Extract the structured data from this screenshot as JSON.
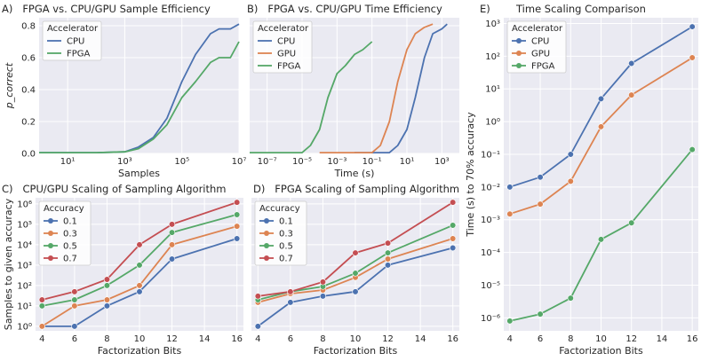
{
  "colors": {
    "blue": "#4c72b0",
    "orange": "#dd8452",
    "green": "#55a868",
    "red": "#c44e52"
  },
  "chart_data": [
    {
      "id": "A",
      "type": "line",
      "title": "A)   FPGA vs. CPU/GPU Sample Efficiency",
      "xlabel": "Samples",
      "ylabel": "p_correct",
      "xscale": "log",
      "xlim": [
        1,
        10000000
      ],
      "ylim": [
        0,
        0.85
      ],
      "xticks": [
        {
          "v": 10,
          "label": "10¹"
        },
        {
          "v": 1000,
          "label": "10³"
        },
        {
          "v": 100000,
          "label": "10⁵"
        },
        {
          "v": 10000000,
          "label": "10⁷"
        }
      ],
      "yticks": [
        {
          "v": 0,
          "label": "0.0"
        },
        {
          "v": 0.2,
          "label": "0.2"
        },
        {
          "v": 0.4,
          "label": "0.4"
        },
        {
          "v": 0.6,
          "label": "0.6"
        },
        {
          "v": 0.8,
          "label": "0.8"
        }
      ],
      "legend": {
        "title": "Accelerator",
        "position": "top-left",
        "entries": [
          {
            "name": "CPU",
            "color": "#4c72b0"
          },
          {
            "name": "FPGA",
            "color": "#55a868"
          }
        ]
      },
      "series": [
        {
          "name": "CPU",
          "color": "#4c72b0",
          "markers": false,
          "x": [
            1,
            100,
            1000,
            3000,
            10000,
            30000,
            100000,
            300000,
            1000000,
            2000000,
            5000000,
            10000000
          ],
          "y": [
            0.005,
            0.005,
            0.01,
            0.04,
            0.1,
            0.22,
            0.45,
            0.62,
            0.75,
            0.78,
            0.78,
            0.81
          ]
        },
        {
          "name": "FPGA",
          "color": "#55a868",
          "markers": false,
          "x": [
            1,
            100,
            1000,
            3000,
            10000,
            30000,
            100000,
            300000,
            1000000,
            2000000,
            5000000,
            10000000
          ],
          "y": [
            0.005,
            0.005,
            0.01,
            0.03,
            0.09,
            0.18,
            0.35,
            0.45,
            0.57,
            0.6,
            0.6,
            0.7
          ]
        }
      ]
    },
    {
      "id": "B",
      "type": "line",
      "title": "B)   FPGA vs. CPU/GPU Time Efficiency",
      "xlabel": "Time (s)",
      "ylabel": "",
      "xscale": "log",
      "xlim": [
        1e-08,
        10000
      ],
      "ylim": [
        0,
        0.85
      ],
      "xticks": [
        {
          "v": 1e-07,
          "label": "10⁻⁷"
        },
        {
          "v": 1e-05,
          "label": "10⁻⁵"
        },
        {
          "v": 0.001,
          "label": "10⁻³"
        },
        {
          "v": 0.1,
          "label": "10⁻¹"
        },
        {
          "v": 10,
          "label": "10¹"
        },
        {
          "v": 1000,
          "label": "10³"
        }
      ],
      "yticks": [],
      "legend": {
        "title": "Accelerator",
        "position": "top-left",
        "entries": [
          {
            "name": "CPU",
            "color": "#4c72b0"
          },
          {
            "name": "GPU",
            "color": "#dd8452"
          },
          {
            "name": "FPGA",
            "color": "#55a868"
          }
        ]
      },
      "series": [
        {
          "name": "CPU",
          "color": "#4c72b0",
          "markers": false,
          "x": [
            0.01,
            1,
            3,
            10,
            30,
            100,
            300,
            1000,
            2000
          ],
          "y": [
            0.005,
            0.005,
            0.05,
            0.15,
            0.35,
            0.6,
            0.75,
            0.78,
            0.81
          ]
        },
        {
          "name": "GPU",
          "color": "#dd8452",
          "markers": false,
          "x": [
            0.0001,
            0.1,
            0.3,
            1,
            3,
            10,
            30,
            100,
            300
          ],
          "y": [
            0.005,
            0.005,
            0.05,
            0.2,
            0.45,
            0.65,
            0.75,
            0.79,
            0.81
          ]
        },
        {
          "name": "FPGA",
          "color": "#55a868",
          "markers": false,
          "x": [
            1e-08,
            1e-05,
            3e-05,
            0.0001,
            0.0003,
            0.001,
            0.003,
            0.01,
            0.03,
            0.1
          ],
          "y": [
            0.005,
            0.005,
            0.05,
            0.15,
            0.35,
            0.5,
            0.55,
            0.62,
            0.65,
            0.7
          ]
        }
      ]
    },
    {
      "id": "C",
      "type": "line",
      "title": "C)   CPU/GPU Scaling of Sampling Algorithm",
      "xlabel": "Factorization Bits",
      "ylabel": "Samples to given accuracy",
      "xscale": "linear",
      "yscale": "log",
      "xlim": [
        3.6,
        16.4
      ],
      "ylim": [
        0.6,
        2000000
      ],
      "xticks": [
        {
          "v": 4,
          "label": "4"
        },
        {
          "v": 6,
          "label": "6"
        },
        {
          "v": 8,
          "label": "8"
        },
        {
          "v": 10,
          "label": "10"
        },
        {
          "v": 12,
          "label": "12"
        },
        {
          "v": 14,
          "label": "14"
        },
        {
          "v": 16,
          "label": "16"
        }
      ],
      "yticks": [
        {
          "v": 1,
          "label": "10⁰"
        },
        {
          "v": 10,
          "label": "10¹"
        },
        {
          "v": 100,
          "label": "10²"
        },
        {
          "v": 1000,
          "label": "10³"
        },
        {
          "v": 10000,
          "label": "10⁴"
        },
        {
          "v": 100000,
          "label": "10⁵"
        },
        {
          "v": 1000000,
          "label": "10⁶"
        }
      ],
      "legend": {
        "title": "Accuracy",
        "position": "top-left",
        "entries": [
          {
            "name": "0.1",
            "color": "#4c72b0"
          },
          {
            "name": "0.3",
            "color": "#dd8452"
          },
          {
            "name": "0.5",
            "color": "#55a868"
          },
          {
            "name": "0.7",
            "color": "#c44e52"
          }
        ]
      },
      "series": [
        {
          "name": "0.1",
          "color": "#4c72b0",
          "markers": true,
          "x": [
            4,
            6,
            8,
            10,
            12,
            16
          ],
          "y": [
            1,
            1,
            10,
            50,
            2000,
            20000
          ]
        },
        {
          "name": "0.3",
          "color": "#dd8452",
          "markers": true,
          "x": [
            4,
            6,
            8,
            10,
            12,
            16
          ],
          "y": [
            1,
            10,
            20,
            100,
            10000,
            80000
          ]
        },
        {
          "name": "0.5",
          "color": "#55a868",
          "markers": true,
          "x": [
            4,
            6,
            8,
            10,
            12,
            16
          ],
          "y": [
            10,
            20,
            100,
            1000,
            40000,
            300000
          ]
        },
        {
          "name": "0.7",
          "color": "#c44e52",
          "markers": true,
          "x": [
            4,
            6,
            8,
            10,
            12,
            16
          ],
          "y": [
            20,
            50,
            200,
            10000,
            100000,
            1200000
          ]
        }
      ]
    },
    {
      "id": "D",
      "type": "line",
      "title": "D)   FPGA Scaling of Sampling Algorithm",
      "xlabel": "Factorization Bits",
      "ylabel": "",
      "xscale": "linear",
      "yscale": "log",
      "xlim": [
        3.6,
        16.4
      ],
      "ylim": [
        0.6,
        2000000
      ],
      "xticks": [
        {
          "v": 4,
          "label": "4"
        },
        {
          "v": 6,
          "label": "6"
        },
        {
          "v": 8,
          "label": "8"
        },
        {
          "v": 10,
          "label": "10"
        },
        {
          "v": 12,
          "label": "12"
        },
        {
          "v": 14,
          "label": "14"
        },
        {
          "v": 16,
          "label": "16"
        }
      ],
      "yticks": [],
      "legend": {
        "title": "Accuracy",
        "position": "top-left",
        "entries": [
          {
            "name": "0.1",
            "color": "#4c72b0"
          },
          {
            "name": "0.3",
            "color": "#dd8452"
          },
          {
            "name": "0.5",
            "color": "#55a868"
          },
          {
            "name": "0.7",
            "color": "#c44e52"
          }
        ]
      },
      "series": [
        {
          "name": "0.1",
          "color": "#4c72b0",
          "markers": true,
          "x": [
            4,
            6,
            8,
            10,
            12,
            16
          ],
          "y": [
            1,
            15,
            30,
            50,
            1000,
            7000
          ]
        },
        {
          "name": "0.3",
          "color": "#dd8452",
          "markers": true,
          "x": [
            4,
            6,
            8,
            10,
            12,
            16
          ],
          "y": [
            15,
            40,
            60,
            250,
            2000,
            20000
          ]
        },
        {
          "name": "0.5",
          "color": "#55a868",
          "markers": true,
          "x": [
            4,
            6,
            8,
            10,
            12,
            16
          ],
          "y": [
            20,
            50,
            90,
            400,
            4000,
            90000
          ]
        },
        {
          "name": "0.7",
          "color": "#c44e52",
          "markers": true,
          "x": [
            4,
            6,
            8,
            10,
            12,
            16
          ],
          "y": [
            30,
            50,
            150,
            4000,
            12000,
            1200000
          ]
        }
      ]
    },
    {
      "id": "E",
      "type": "line",
      "title": "E)        Time Scaling Comparison",
      "xlabel": "Factorization Bits",
      "ylabel": "Time (s) to 70% accuracy",
      "xscale": "linear",
      "yscale": "log",
      "xlim": [
        3.6,
        16.4
      ],
      "ylim": [
        4e-07,
        1500
      ],
      "xticks": [
        {
          "v": 4,
          "label": "4"
        },
        {
          "v": 6,
          "label": "6"
        },
        {
          "v": 8,
          "label": "8"
        },
        {
          "v": 10,
          "label": "10"
        },
        {
          "v": 12,
          "label": "12"
        },
        {
          "v": 14,
          "label": "14"
        },
        {
          "v": 16,
          "label": "16"
        }
      ],
      "yticks": [
        {
          "v": 1e-06,
          "label": "10⁻⁶"
        },
        {
          "v": 1e-05,
          "label": "10⁻⁵"
        },
        {
          "v": 0.0001,
          "label": "10⁻⁴"
        },
        {
          "v": 0.001,
          "label": "10⁻³"
        },
        {
          "v": 0.01,
          "label": "10⁻²"
        },
        {
          "v": 0.1,
          "label": "10⁻¹"
        },
        {
          "v": 1,
          "label": "10⁰"
        },
        {
          "v": 10,
          "label": "10¹"
        },
        {
          "v": 100,
          "label": "10²"
        },
        {
          "v": 1000,
          "label": "10³"
        }
      ],
      "legend": {
        "title": "Accelerator",
        "position": "top-left",
        "entries": [
          {
            "name": "CPU",
            "color": "#4c72b0"
          },
          {
            "name": "GPU",
            "color": "#dd8452"
          },
          {
            "name": "FPGA",
            "color": "#55a868"
          }
        ]
      },
      "series": [
        {
          "name": "CPU",
          "color": "#4c72b0",
          "markers": true,
          "x": [
            4,
            6,
            8,
            10,
            12,
            16
          ],
          "y": [
            0.01,
            0.02,
            0.1,
            5,
            60,
            800
          ]
        },
        {
          "name": "GPU",
          "color": "#dd8452",
          "markers": true,
          "x": [
            4,
            6,
            8,
            10,
            12,
            16
          ],
          "y": [
            0.0015,
            0.003,
            0.015,
            0.7,
            6.5,
            90
          ]
        },
        {
          "name": "FPGA",
          "color": "#55a868",
          "markers": true,
          "x": [
            4,
            6,
            8,
            10,
            12,
            16
          ],
          "y": [
            8e-07,
            1.3e-06,
            4e-06,
            0.00025,
            0.0008,
            0.14
          ]
        }
      ]
    }
  ]
}
